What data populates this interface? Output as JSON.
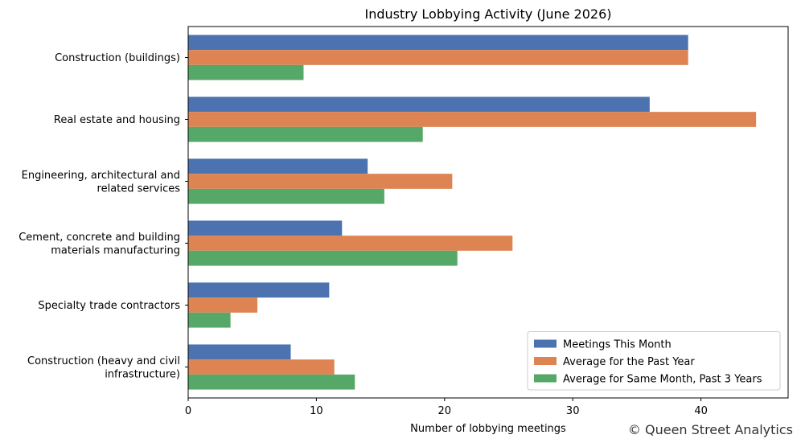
{
  "chart_data": {
    "type": "bar",
    "orientation": "horizontal",
    "title": "Industry Lobbying Activity (June 2026)",
    "xlabel": "Number of lobbying meetings",
    "ylabel": "",
    "xlim": [
      0,
      46.8
    ],
    "x_ticks": [
      0,
      10,
      20,
      30,
      40
    ],
    "grid": false,
    "legend_position": "bottom-right",
    "categories": [
      "Construction (buildings)",
      "Real estate and housing",
      "Engineering, architectural and\nrelated services",
      "Cement, concrete and building\nmaterials manufacturing",
      "Specialty trade contractors",
      "Construction (heavy and civil\ninfrastructure)"
    ],
    "series": [
      {
        "name": "Meetings This Month",
        "color": "#4c72b0",
        "values": [
          39,
          36,
          14,
          12,
          11,
          8
        ]
      },
      {
        "name": "Average for the Past Year",
        "color": "#dd8452",
        "values": [
          39,
          44.3,
          20.6,
          25.3,
          5.4,
          11.4
        ]
      },
      {
        "name": "Average for Same Month, Past 3 Years",
        "color": "#55a868",
        "values": [
          9,
          18.3,
          15.3,
          21,
          3.3,
          13
        ]
      }
    ]
  },
  "watermark": "© Queen Street Analytics"
}
